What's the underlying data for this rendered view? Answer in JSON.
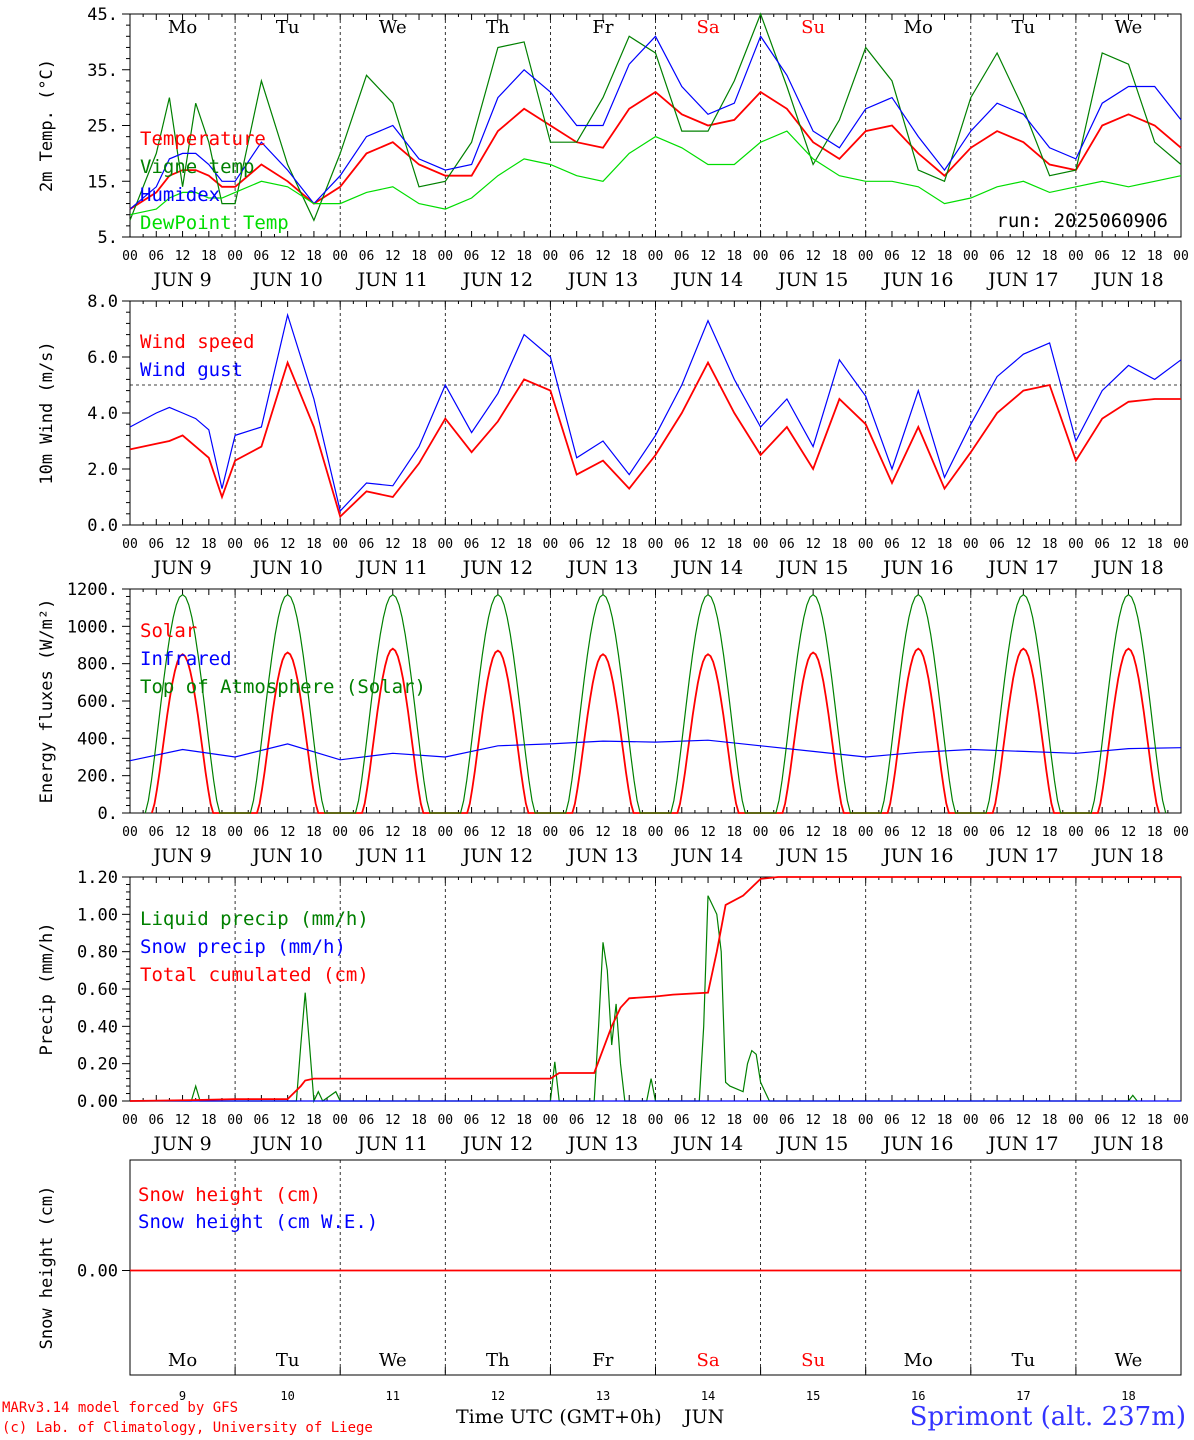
{
  "location": "Sprimont (alt. 237m)",
  "run_label": "run: 2025060906",
  "credits": {
    "model": "MARv3.14 model forced by GFS",
    "lab": "(c) Lab. of Climatology, University of Liege"
  },
  "x_axis": {
    "title": "Time UTC (GMT+0h)",
    "month": "JUN",
    "hour_ticks": [
      "00",
      "06",
      "12",
      "18"
    ],
    "day_labels": [
      "JUN  9",
      "JUN 10",
      "JUN 11",
      "JUN 12",
      "JUN 13",
      "JUN 14",
      "JUN 15",
      "JUN 16",
      "JUN 17",
      "JUN 18"
    ],
    "day_numbers": [
      "9",
      "10",
      "11",
      "12",
      "13",
      "14",
      "15",
      "16",
      "17",
      "18"
    ],
    "weekdays": [
      "Mo",
      "Tu",
      "We",
      "Th",
      "Fr",
      "Sa",
      "Su",
      "Mo",
      "Tu",
      "We"
    ],
    "weekend_color": "#ff0000"
  },
  "colors": {
    "red": "#ff0000",
    "blue": "#0000ff",
    "green": "#008000",
    "lightgreen": "#00dd00"
  },
  "chart_data": [
    {
      "type": "line",
      "ylabel": "2m Temp. (°C)",
      "ylim": [
        5,
        45
      ],
      "yticks": [
        "5.",
        "15.",
        "25.",
        "35.",
        "45."
      ],
      "x_hours": [
        0,
        6,
        9,
        12,
        15,
        18,
        21,
        24,
        30,
        36,
        42,
        48,
        54,
        60,
        66,
        72,
        78,
        84,
        90,
        96,
        102,
        108,
        114,
        120,
        126,
        132,
        138,
        144,
        150,
        156,
        162,
        168,
        174,
        180,
        186,
        192,
        198,
        204,
        210,
        216,
        222,
        228,
        234,
        240
      ],
      "series": [
        {
          "name": "Temperature",
          "color": "red",
          "values": [
            10,
            13,
            16,
            17,
            17,
            16,
            14,
            14,
            18,
            15,
            11,
            14,
            20,
            22,
            18,
            16,
            16,
            24,
            28,
            25,
            22,
            21,
            28,
            31,
            27,
            25,
            26,
            31,
            28,
            22,
            19,
            24,
            25,
            20,
            16,
            21,
            24,
            22,
            18,
            17,
            25,
            27,
            25,
            21
          ]
        },
        {
          "name": "Vigne temp",
          "color": "green",
          "values": [
            8,
            20,
            30,
            14,
            29,
            22,
            11,
            11,
            33,
            18,
            8,
            20,
            34,
            29,
            14,
            15,
            22,
            39,
            40,
            22,
            22,
            30,
            41,
            38,
            24,
            24,
            33,
            45,
            32,
            18,
            26,
            39,
            33,
            17,
            15,
            30,
            38,
            28,
            16,
            17,
            38,
            36,
            22,
            18
          ]
        },
        {
          "name": "Humidex",
          "color": "blue",
          "values": [
            10,
            14,
            19,
            20,
            20,
            18,
            15,
            15,
            22,
            17,
            11,
            16,
            23,
            25,
            19,
            17,
            18,
            30,
            35,
            31,
            25,
            25,
            36,
            41,
            32,
            27,
            29,
            41,
            34,
            24,
            21,
            28,
            30,
            23,
            17,
            24,
            29,
            27,
            21,
            19,
            29,
            32,
            32,
            26
          ]
        },
        {
          "name": "DewPoint Temp",
          "color": "lightgreen",
          "values": [
            9,
            10,
            12,
            13,
            13,
            12,
            12,
            13,
            15,
            14,
            11,
            11,
            13,
            14,
            11,
            10,
            12,
            16,
            19,
            18,
            16,
            15,
            20,
            23,
            21,
            18,
            18,
            22,
            24,
            19,
            16,
            15,
            15,
            14,
            11,
            12,
            14,
            15,
            13,
            14,
            15,
            14,
            15,
            16
          ]
        }
      ]
    },
    {
      "type": "line",
      "ylabel": "10m Wind (m/s)",
      "ylim": [
        0,
        8
      ],
      "yticks": [
        "0.0",
        "2.0",
        "4.0",
        "6.0",
        "8.0"
      ],
      "reference_line": 5,
      "x_hours": [
        0,
        6,
        9,
        12,
        15,
        18,
        21,
        24,
        30,
        36,
        42,
        48,
        54,
        60,
        66,
        72,
        78,
        84,
        90,
        96,
        102,
        108,
        114,
        120,
        126,
        132,
        138,
        144,
        150,
        156,
        162,
        168,
        174,
        180,
        186,
        192,
        198,
        204,
        210,
        216,
        222,
        228,
        234,
        240
      ],
      "series": [
        {
          "name": "Wind speed",
          "color": "red",
          "values": [
            2.7,
            2.9,
            3.0,
            3.2,
            2.8,
            2.4,
            1.0,
            2.3,
            2.8,
            5.8,
            3.5,
            0.3,
            1.2,
            1.0,
            2.2,
            3.8,
            2.6,
            3.7,
            5.2,
            4.8,
            1.8,
            2.3,
            1.3,
            2.5,
            4.0,
            5.8,
            4.0,
            2.5,
            3.5,
            2.0,
            4.5,
            3.6,
            1.5,
            3.5,
            1.3,
            2.6,
            4.0,
            4.8,
            5.0,
            2.3,
            3.8,
            4.4,
            4.5,
            4.5
          ]
        },
        {
          "name": "Wind gust",
          "color": "blue",
          "values": [
            3.5,
            4.0,
            4.2,
            4.0,
            3.8,
            3.4,
            1.3,
            3.2,
            3.5,
            7.5,
            4.5,
            0.5,
            1.5,
            1.4,
            2.8,
            5.0,
            3.3,
            4.7,
            6.8,
            6.0,
            2.4,
            3.0,
            1.8,
            3.2,
            5.0,
            7.3,
            5.2,
            3.5,
            4.5,
            2.8,
            5.9,
            4.6,
            2.0,
            4.8,
            1.7,
            3.6,
            5.3,
            6.1,
            6.5,
            3.0,
            4.8,
            5.7,
            5.2,
            5.9
          ]
        }
      ]
    },
    {
      "type": "line",
      "ylabel": "Energy fluxes (W/m²)",
      "ylim": [
        0,
        1200
      ],
      "yticks": [
        "0.",
        "200.",
        "400.",
        "600.",
        "800.",
        "1000.",
        "1200."
      ],
      "daily_profile_hours": [
        4,
        6,
        8,
        10,
        12,
        14,
        16,
        18,
        20
      ],
      "series": [
        {
          "name": "Solar",
          "color": "red",
          "daily_peaks": [
            850,
            860,
            880,
            870,
            850,
            850,
            860,
            880,
            880,
            880
          ]
        },
        {
          "name": "Infrared",
          "color": "blue",
          "x_hours": [
            0,
            12,
            24,
            36,
            48,
            60,
            72,
            84,
            96,
            108,
            120,
            132,
            144,
            156,
            168,
            180,
            192,
            204,
            216,
            228,
            240
          ],
          "values": [
            280,
            340,
            300,
            370,
            285,
            320,
            300,
            360,
            370,
            385,
            380,
            390,
            360,
            330,
            300,
            325,
            340,
            330,
            320,
            345,
            350
          ]
        },
        {
          "name": "Top of Atmosphere (Solar)",
          "color": "green",
          "daily_peaks": [
            1170,
            1170,
            1170,
            1170,
            1170,
            1170,
            1170,
            1170,
            1170,
            1170
          ]
        }
      ]
    },
    {
      "type": "line",
      "ylabel": "Precip (mm/h)",
      "ylim": [
        0,
        1.2
      ],
      "yticks": [
        "0.00",
        "0.20",
        "0.40",
        "0.60",
        "0.80",
        "1.00",
        "1.20"
      ],
      "series": [
        {
          "name": "Liquid precip (mm/h)",
          "color": "green",
          "x_hours": [
            0,
            14,
            15,
            16,
            38,
            39,
            40,
            41,
            42,
            43,
            44,
            47,
            48,
            96,
            97,
            98,
            106,
            107,
            108,
            109,
            110,
            111,
            112,
            113,
            118,
            119,
            120,
            130,
            131,
            132,
            133,
            134,
            135,
            136,
            137,
            138,
            140,
            141,
            142,
            143,
            144,
            145,
            146,
            147,
            148,
            150,
            228,
            229,
            230
          ],
          "values": [
            0,
            0,
            0.08,
            0,
            0,
            0.3,
            0.58,
            0.3,
            0,
            0.05,
            0,
            0.05,
            0,
            0,
            0.21,
            0,
            0,
            0.4,
            0.85,
            0.7,
            0.3,
            0.52,
            0.2,
            0,
            0,
            0.12,
            0,
            0,
            0.4,
            1.1,
            1.05,
            1.0,
            0.8,
            0.1,
            0.08,
            0.07,
            0.05,
            0.2,
            0.27,
            0.25,
            0.1,
            0.05,
            0,
            0,
            0,
            0,
            0,
            0.03,
            0
          ]
        },
        {
          "name": "Snow precip (mm/h)",
          "color": "blue",
          "x_hours": [
            0,
            240
          ],
          "values": [
            0,
            0
          ]
        },
        {
          "name": "Total cumulated (cm)",
          "color": "red",
          "x_hours": [
            0,
            14,
            24,
            36,
            39,
            40,
            42,
            48,
            60,
            96,
            98,
            106,
            110,
            112,
            114,
            120,
            124,
            132,
            134,
            136,
            140,
            144,
            148,
            240
          ],
          "values": [
            0,
            0.005,
            0.01,
            0.01,
            0.08,
            0.11,
            0.12,
            0.12,
            0.12,
            0.12,
            0.15,
            0.15,
            0.4,
            0.5,
            0.55,
            0.56,
            0.57,
            0.58,
            0.8,
            1.05,
            1.1,
            1.19,
            1.2,
            1.2
          ]
        }
      ]
    },
    {
      "type": "line",
      "ylabel": "Snow height (cm)",
      "yticks": [
        "0.00"
      ],
      "series": [
        {
          "name": "Snow height (cm)",
          "color": "red",
          "x_hours": [
            0,
            240
          ],
          "values": [
            0,
            0
          ]
        },
        {
          "name": "Snow height (cm W.E.)",
          "color": "blue",
          "x_hours": [
            0,
            240
          ],
          "values": [
            0,
            0
          ]
        }
      ]
    }
  ]
}
